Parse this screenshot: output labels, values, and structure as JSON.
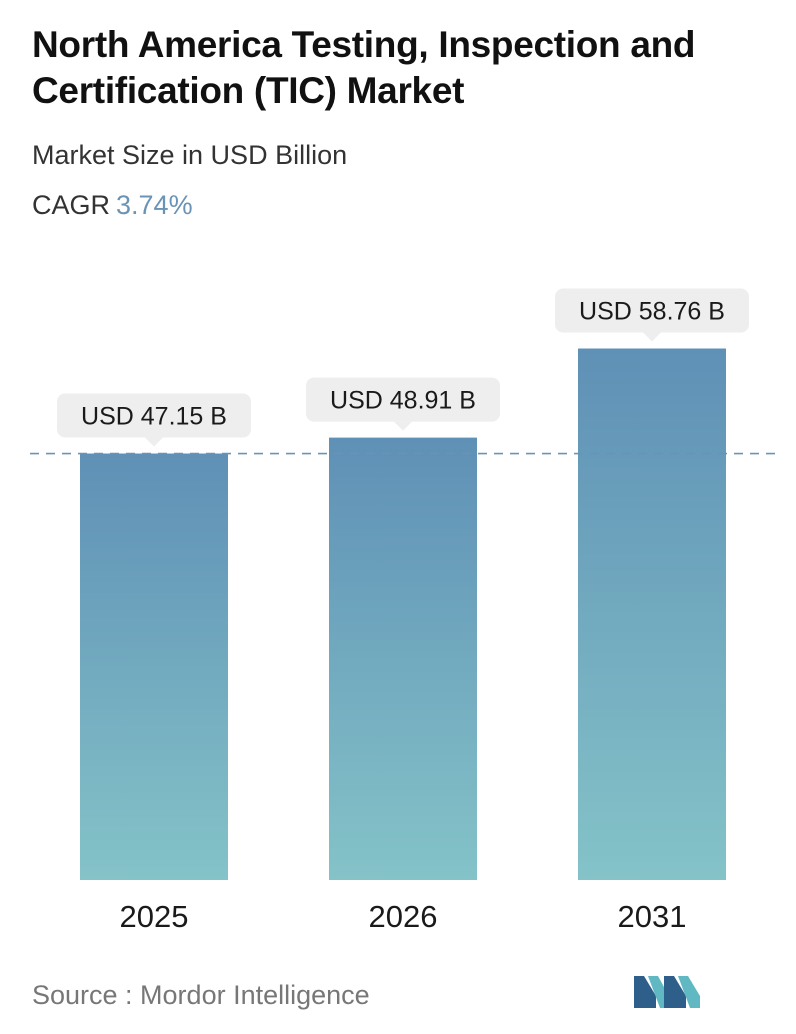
{
  "header": {
    "title": "North America Testing, Inspection and Certification (TIC) Market",
    "subtitle": "Market Size in USD Billion",
    "cagr_label": "CAGR",
    "cagr_value": "3.74%"
  },
  "footer": {
    "source": "Source :  Mordor Intelligence"
  },
  "colors": {
    "bar_top": "#5f90b6",
    "bar_bottom": "#84c3c8",
    "label_bg": "#eeeeee",
    "dashed_line": "#6a93b5",
    "cagr_accent": "#6a93b5",
    "logo_dark": "#2e5f8a",
    "logo_light": "#5fb8c2"
  },
  "chart_data": {
    "type": "bar",
    "categories": [
      "2025",
      "2026",
      "2031"
    ],
    "values": [
      47.15,
      48.91,
      58.76
    ],
    "value_labels": [
      "USD 47.15 B",
      "USD 48.91 B",
      "USD 58.76 B"
    ],
    "title": "North America Testing, Inspection and Certification (TIC) Market",
    "subtitle": "Market Size in USD Billion",
    "xlabel": "",
    "ylabel": "",
    "reference_line": 47.15,
    "grid": false,
    "legend": "none"
  }
}
